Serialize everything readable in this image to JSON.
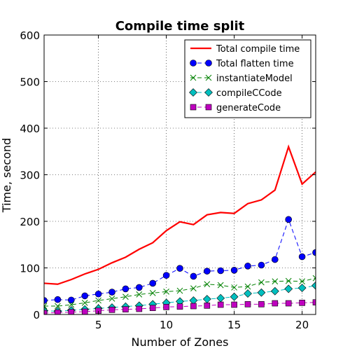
{
  "chart_data": {
    "type": "line",
    "title": "Compile time split",
    "xlabel": "Number of Zones",
    "ylabel": "Time, second",
    "xlim": [
      1,
      21
    ],
    "ylim": [
      0,
      600
    ],
    "xticks": [
      5,
      10,
      15,
      20
    ],
    "yticks": [
      0,
      100,
      200,
      300,
      400,
      500,
      600
    ],
    "grid": true,
    "legend_position": "top-right",
    "x": [
      1,
      2,
      3,
      4,
      5,
      6,
      7,
      8,
      9,
      10,
      11,
      12,
      13,
      14,
      15,
      16,
      17,
      18,
      19,
      20,
      21
    ],
    "series": [
      {
        "name": "Total compile time",
        "color": "#ff0000",
        "line": "solid",
        "marker": "none",
        "values": [
          67,
          65,
          75,
          87,
          97,
          111,
          123,
          140,
          154,
          180,
          199,
          193,
          214,
          219,
          217,
          238,
          246,
          267,
          360,
          280,
          306
        ]
      },
      {
        "name": "Total flatten time",
        "color": "#0000ff",
        "line": "dashed",
        "marker": "circle",
        "values": [
          30,
          32,
          31,
          40,
          44,
          48,
          55,
          58,
          67,
          84,
          99,
          82,
          93,
          94,
          95,
          104,
          106,
          118,
          204,
          124,
          133
        ]
      },
      {
        "name": "instantiateModel",
        "color": "#008000",
        "line": "dashed",
        "marker": "x",
        "values": [
          18,
          18,
          21,
          25,
          30,
          34,
          38,
          43,
          46,
          49,
          51,
          56,
          65,
          63,
          58,
          60,
          69,
          71,
          72,
          71,
          78
        ]
      },
      {
        "name": "compileCCode",
        "color": "#00bfbf",
        "line": "dashed",
        "marker": "diamond",
        "values": [
          8,
          7,
          9,
          11,
          13,
          15,
          17,
          19,
          22,
          25,
          28,
          30,
          33,
          35,
          38,
          45,
          47,
          50,
          55,
          57,
          62
        ]
      },
      {
        "name": "generateCode",
        "color": "#bf00bf",
        "line": "dashed",
        "marker": "square",
        "values": [
          3,
          4,
          5,
          6,
          8,
          10,
          11,
          12,
          14,
          16,
          17,
          18,
          19,
          21,
          21,
          22,
          22,
          24,
          24,
          25,
          26
        ]
      }
    ]
  }
}
